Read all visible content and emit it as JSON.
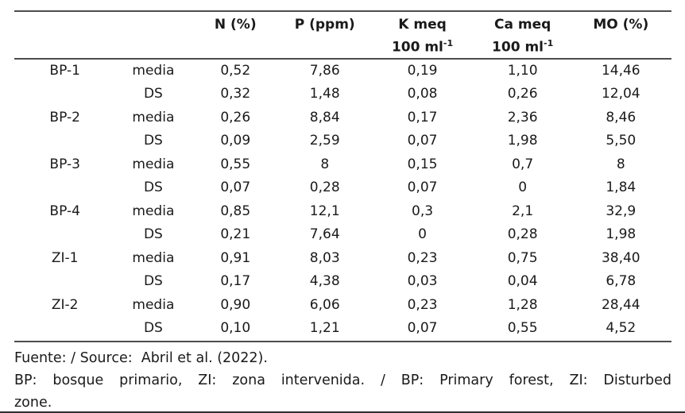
{
  "table": {
    "headers": [
      {
        "l1": ""
      },
      {
        "l1": ""
      },
      {
        "l1": "N (%)"
      },
      {
        "l1": "P (ppm)"
      },
      {
        "l1": "K meq",
        "l2": "100 ml",
        "sup": "-1"
      },
      {
        "l1": "Ca meq",
        "l2": "100 ml",
        "sup": "-1"
      },
      {
        "l1": "MO (%)"
      }
    ],
    "rows": [
      {
        "site": "BP-1",
        "stat": "media",
        "values": [
          "0,52",
          "7,86",
          "0,19",
          "1,10",
          "14,46"
        ]
      },
      {
        "site": "",
        "stat": "DS",
        "values": [
          "0,32",
          "1,48",
          "0,08",
          "0,26",
          "12,04"
        ]
      },
      {
        "site": "BP-2",
        "stat": "media",
        "values": [
          "0,26",
          "8,84",
          "0,17",
          "2,36",
          "8,46"
        ]
      },
      {
        "site": "",
        "stat": "DS",
        "values": [
          "0,09",
          "2,59",
          "0,07",
          "1,98",
          "5,50"
        ]
      },
      {
        "site": "BP-3",
        "stat": "media",
        "values": [
          "0,55",
          "8",
          "0,15",
          "0,7",
          "8"
        ]
      },
      {
        "site": "",
        "stat": "DS",
        "values": [
          "0,07",
          "0,28",
          "0,07",
          "0",
          "1,84"
        ]
      },
      {
        "site": "BP-4",
        "stat": "media",
        "values": [
          "0,85",
          "12,1",
          "0,3",
          "2,1",
          "32,9"
        ]
      },
      {
        "site": "",
        "stat": "DS",
        "values": [
          "0,21",
          "7,64",
          "0",
          "0,28",
          "1,98"
        ]
      },
      {
        "site": "ZI-1",
        "stat": "media",
        "values": [
          "0,91",
          "8,03",
          "0,23",
          "0,75",
          "38,40"
        ]
      },
      {
        "site": "",
        "stat": "DS",
        "values": [
          "0,17",
          "4,38",
          "0,03",
          "0,04",
          "6,78"
        ]
      },
      {
        "site": "ZI-2",
        "stat": "media",
        "values": [
          "0,90",
          "6,06",
          "0,23",
          "1,28",
          "28,44"
        ]
      },
      {
        "site": "",
        "stat": "DS",
        "values": [
          "0,10",
          "1,21",
          "0,07",
          "0,55",
          "4,52"
        ]
      }
    ]
  },
  "footnotes": {
    "source": "Fuente: / Source:  Abril et al. (2022).",
    "note_line1": "BP: bosque primario, ZI: zona intervenida. / BP: Primary forest, ZI: Disturbed",
    "note_line2": "zone."
  },
  "colors": {
    "text": "#1a1a1a",
    "rule": "#4d4d4d",
    "background": "#ffffff"
  }
}
